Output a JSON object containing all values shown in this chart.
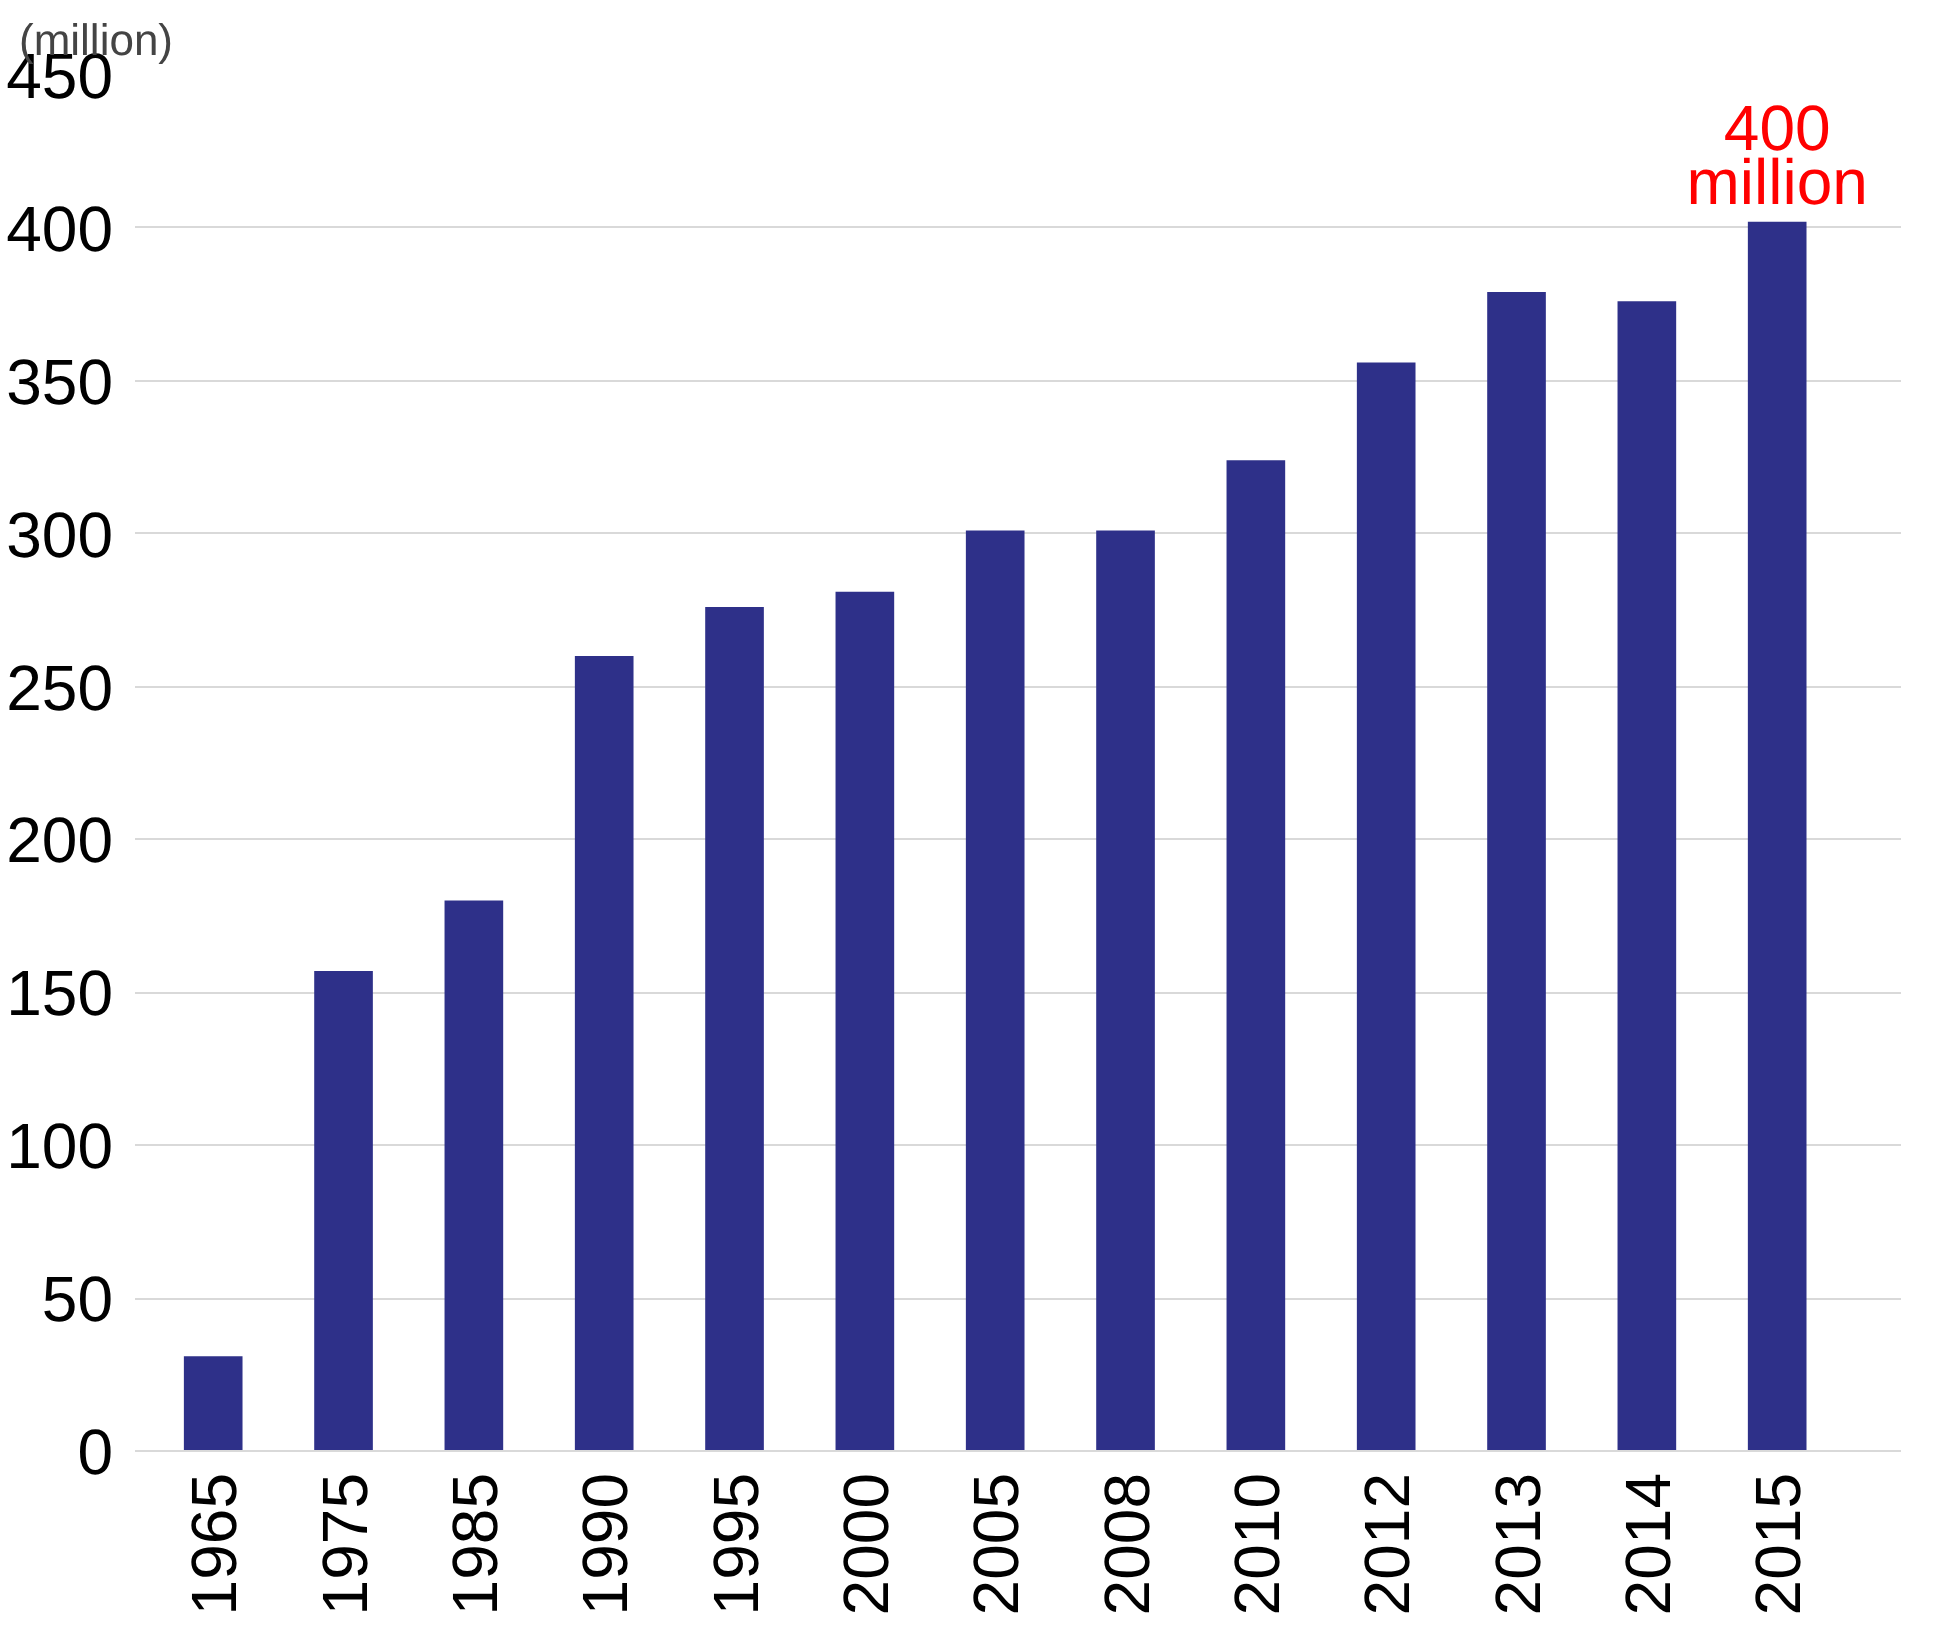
{
  "chart_data": {
    "type": "bar",
    "ylabel": "(million)",
    "categories": [
      "1965",
      "1975",
      "1985",
      "1990",
      "1995",
      "2000",
      "2005",
      "2008",
      "2010",
      "2012",
      "2013",
      "2014",
      "2015"
    ],
    "values": [
      31,
      157,
      180,
      260,
      276,
      281,
      301,
      301,
      324,
      356,
      379,
      376,
      402
    ],
    "color": "#2e3089",
    "ylim": [
      0,
      450
    ],
    "yticks": [
      0,
      50,
      100,
      150,
      200,
      250,
      300,
      350,
      400,
      450
    ],
    "grid": "y",
    "annotations": [
      {
        "text": "400 million",
        "x": "2015",
        "y": 402
      }
    ]
  }
}
